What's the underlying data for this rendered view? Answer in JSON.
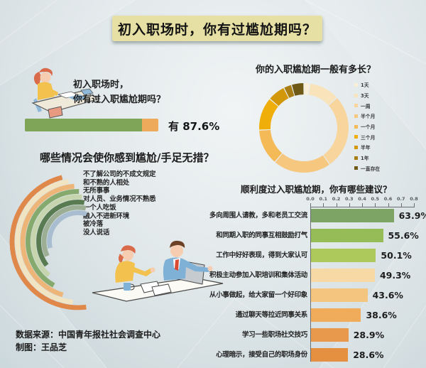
{
  "page": {
    "title_banner": "初入职场时，你有过尴尬期吗？"
  },
  "intro": {
    "question_line1": "初入职场时，",
    "question_line2": "你有过入职尴尬期吗？",
    "answer_label": "有 87.6%"
  },
  "footer": {
    "source": "数据来源：中国青年报社社会调查中心",
    "credit": "制图：王品芝"
  },
  "chart_data": [
    {
      "id": "had-awkward-period",
      "type": "bar",
      "title": "初入职场时，你有过入职尴尬期吗？",
      "categories": [
        "有"
      ],
      "values": [
        87.6
      ],
      "unit": "percent",
      "colors": {
        "fill": "#7fa558",
        "track": "#ecaa5a"
      }
    },
    {
      "id": "duration",
      "type": "pie",
      "donut": true,
      "title": "你的入职尴尬期一般有多长？",
      "categories": [
        "1天",
        "3天",
        "一周",
        "半个月",
        "一个月",
        "三个月",
        "半年",
        "1年",
        "一直存在"
      ],
      "values_pct_estimated": [
        2.2,
        11,
        27,
        21,
        13,
        12,
        6.4,
        2.9,
        4.5
      ],
      "colors": [
        "#f9eed6",
        "#f8e3bb",
        "#f7d59d",
        "#f6c77e",
        "#f4ba58",
        "#efae0a",
        "#d2980a",
        "#a87d14",
        "#6e5a16"
      ],
      "legend_position": "right",
      "data_labels_shown": false
    },
    {
      "id": "situations",
      "type": "radial-bar",
      "title": "哪些情况会使你感到尴尬/手足无措？",
      "categories": [
        "不了解公司的不成文规定",
        "和不熟的人相处",
        "无所事事",
        "对人员、业务情况不熟悉",
        "一个人吃饭",
        "融入不进新环境",
        "被冷落",
        "没人说话"
      ],
      "sweep_deg_estimated": [
        173,
        166,
        160,
        152,
        144,
        136,
        128,
        120
      ],
      "start_deg_estimated": [
        346,
        351,
        356,
        1,
        5,
        9,
        13,
        17
      ],
      "colors": [
        "#e0874a",
        "#f0e4c2",
        "#eeb578",
        "#86aa6d",
        "#c6d5ae",
        "#597b52",
        "#9cae94",
        "#a9bdd0"
      ],
      "value_labels_shown": false
    },
    {
      "id": "suggestions",
      "type": "bar",
      "orientation": "horizontal",
      "title": "顺利度过入职尴尬期，你有哪些建议？",
      "categories": [
        "多向周围人请教，多和老员工交流",
        "和同期入职的同事互相鼓励打气",
        "工作中好好表现，得到大家认可",
        "积极主动参加入职培训和集体活动",
        "从小事做起，给大家留一个好印象",
        "通过聊天等拉近同事关系",
        "学习一些职场社交技巧",
        "心理暗示，接受自己的职场身份"
      ],
      "values_pct": [
        63.9,
        55.6,
        50.1,
        49.3,
        43.6,
        38.6,
        28.9,
        28.6
      ],
      "value_labels": [
        "63.9%",
        "55.6%",
        "50.1%",
        "49.3%",
        "43.6%",
        "38.6%",
        "28.9%",
        "28.6%"
      ],
      "axis_ticks": [
        "0.0",
        "0.1",
        "0.2",
        "0.3",
        "0.4",
        "0.5",
        "0.6",
        "0.7",
        "0.8"
      ],
      "xlim": [
        0,
        0.8
      ],
      "grid": false,
      "colors": [
        "#7da464",
        "#95bc56",
        "#aec95b",
        "#f7d9a6",
        "#f4c57f",
        "#f0ab5b",
        "#e9994c",
        "#e58f41"
      ]
    }
  ]
}
